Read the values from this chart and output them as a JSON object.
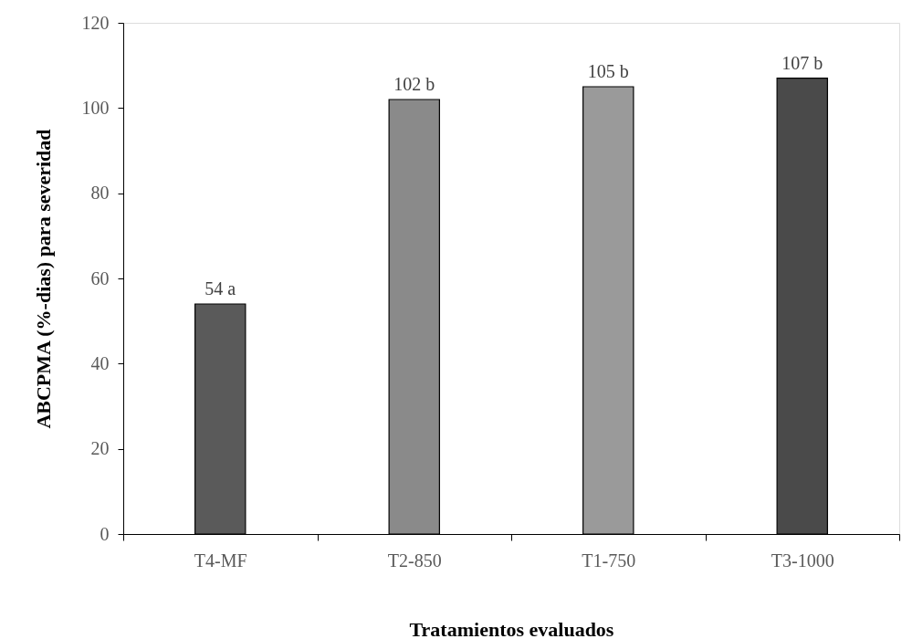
{
  "chart_data": {
    "type": "bar",
    "xlabel": "Tratamientos evaluados",
    "ylabel": "ABCPMA (%-dias) para severidad",
    "categories": [
      "T4-MF",
      "T2-850",
      "T1-750",
      "T3-1000"
    ],
    "values": [
      54,
      102,
      105,
      107
    ],
    "colors": [
      "#5a5a5a",
      "#8a8a8a",
      "#9a9a9a",
      "#4a4a4a"
    ],
    "value_labels": [
      "54 a",
      "102 b",
      "105 b",
      "107 b"
    ],
    "ylim": [
      0,
      120
    ],
    "yticks": [
      0,
      20,
      40,
      60,
      80,
      100,
      120
    ],
    "grid": false,
    "legend": false
  }
}
